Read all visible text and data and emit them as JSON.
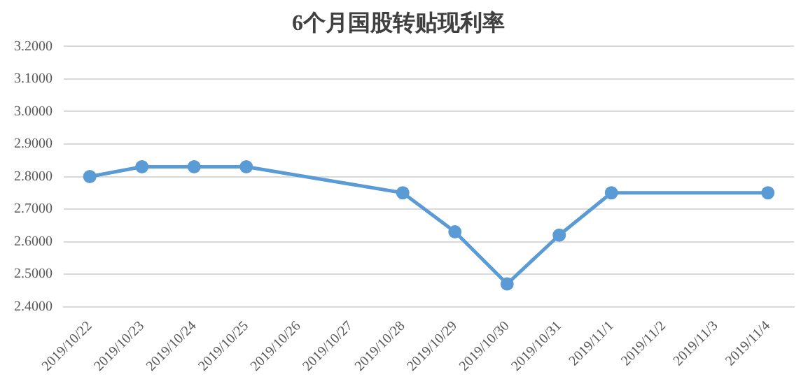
{
  "chart_data": {
    "type": "line",
    "title": "6个月国股转贴现利率",
    "categories": [
      "2019/10/22",
      "2019/10/23",
      "2019/10/24",
      "2019/10/25",
      "2019/10/26",
      "2019/10/27",
      "2019/10/28",
      "2019/10/29",
      "2019/10/30",
      "2019/10/31",
      "2019/11/1",
      "2019/11/2",
      "2019/11/3",
      "2019/11/4"
    ],
    "series": [
      {
        "color": "#5b9bd5",
        "values": [
          2.8,
          2.83,
          2.83,
          2.83,
          null,
          null,
          2.75,
          2.63,
          2.47,
          2.62,
          2.75,
          null,
          null,
          2.75
        ]
      }
    ],
    "ylim": [
      2.4,
      3.2
    ],
    "yticks": [
      {
        "value": 2.4,
        "label": "2.4000"
      },
      {
        "value": 2.5,
        "label": "2.5000"
      },
      {
        "value": 2.6,
        "label": "2.6000"
      },
      {
        "value": 2.7,
        "label": "2.7000"
      },
      {
        "value": 2.8,
        "label": "2.8000"
      },
      {
        "value": 2.9,
        "label": "2.9000"
      },
      {
        "value": 3.0,
        "label": "3.0000"
      },
      {
        "value": 3.1,
        "label": "3.1000"
      },
      {
        "value": 3.2,
        "label": "3.2000"
      }
    ],
    "grid": "y",
    "legend": false,
    "marker": "circle",
    "line_style": "solid"
  }
}
